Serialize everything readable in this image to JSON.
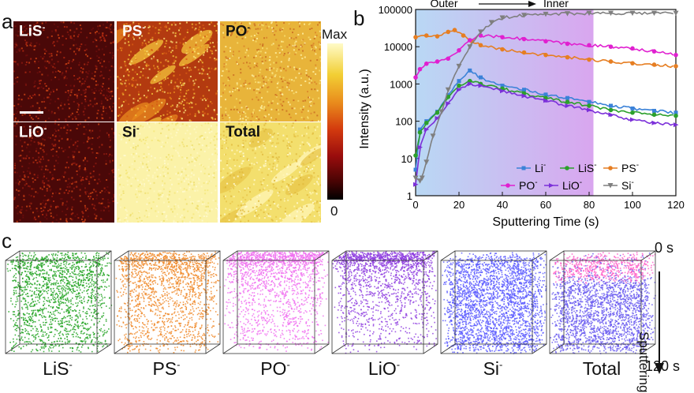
{
  "panel_a": {
    "letter": "a",
    "maps": [
      {
        "label": "LiS",
        "charge": "-",
        "palette": "sparse-red",
        "dark_label": false
      },
      {
        "label": "PS",
        "charge": "-",
        "palette": "stripes-orange",
        "dark_label": false
      },
      {
        "label": "PO",
        "charge": "-",
        "palette": "mottled-yellow",
        "dark_label": true
      },
      {
        "label": "LiO",
        "charge": "-",
        "palette": "sparse-red",
        "dark_label": false
      },
      {
        "label": "Si",
        "charge": "-",
        "palette": "pale-yellow",
        "dark_label": true
      },
      {
        "label": "Total",
        "charge": "",
        "palette": "yellow-streaks",
        "dark_label": true
      }
    ],
    "colorbar": {
      "max_label": "Max",
      "min_label": "0"
    }
  },
  "panel_b": {
    "letter": "b",
    "top_annotation": {
      "left": "Outer",
      "right": "Inner"
    },
    "colors": {
      "Li": "#3b82d8",
      "LiS": "#2ca02c",
      "PS": "#e67e22",
      "PO": "#e020d0",
      "LiO": "#7b2fd9",
      "Si": "#7f7f7f"
    }
  },
  "chart_data": {
    "type": "line",
    "xlabel": "Sputtering Time (s)",
    "ylabel": "Intensity (a.u.)",
    "x_scale": "linear",
    "y_scale": "log",
    "xlim": [
      0,
      120
    ],
    "ylim": [
      1,
      100000
    ],
    "x_ticks": [
      0,
      20,
      40,
      60,
      80,
      100,
      120
    ],
    "y_ticks": [
      1,
      10,
      100,
      1000,
      10000,
      100000
    ],
    "y_tick_labels": [
      "1",
      "10",
      "100",
      "1000",
      "10000",
      "100000"
    ],
    "shaded_region": {
      "x_range": [
        0,
        82
      ],
      "from_color": "#b9d8f4",
      "to_color": "#d9a6ef"
    },
    "legend_placement": "bottom-right",
    "grid": false,
    "series": [
      {
        "name": "Li",
        "charge": "-",
        "marker": "square",
        "color": "#3b82d8",
        "x": [
          0,
          2,
          5,
          10,
          15,
          20,
          25,
          30,
          40,
          50,
          60,
          70,
          80,
          90,
          100,
          110,
          120
        ],
        "y": [
          5,
          60,
          100,
          180,
          500,
          1200,
          2300,
          1500,
          900,
          700,
          520,
          420,
          330,
          260,
          220,
          190,
          170
        ]
      },
      {
        "name": "LiS",
        "charge": "-",
        "marker": "circle",
        "color": "#2ca02c",
        "x": [
          0,
          2,
          5,
          10,
          15,
          20,
          25,
          30,
          40,
          50,
          60,
          70,
          80,
          90,
          100,
          110,
          120
        ],
        "y": [
          12,
          50,
          90,
          170,
          450,
          900,
          1200,
          1000,
          750,
          560,
          420,
          330,
          260,
          200,
          170,
          150,
          140
        ]
      },
      {
        "name": "PS",
        "charge": "-",
        "marker": "circle",
        "color": "#e67e22",
        "x": [
          0,
          5,
          10,
          15,
          18,
          22,
          26,
          30,
          40,
          50,
          60,
          70,
          80,
          90,
          100,
          110,
          120
        ],
        "y": [
          18000,
          20000,
          19000,
          25000,
          28000,
          20000,
          14000,
          11000,
          8500,
          7000,
          6000,
          5200,
          4500,
          4000,
          3600,
          3300,
          3000
        ]
      },
      {
        "name": "PO",
        "charge": "-",
        "marker": "circle",
        "color": "#e020d0",
        "x": [
          0,
          2,
          5,
          10,
          15,
          20,
          25,
          30,
          40,
          50,
          60,
          70,
          80,
          90,
          100,
          110,
          120
        ],
        "y": [
          1500,
          2500,
          3500,
          4000,
          4800,
          8000,
          15000,
          20000,
          18000,
          16000,
          14000,
          12000,
          11000,
          10000,
          9000,
          7500,
          6000
        ]
      },
      {
        "name": "LiO",
        "charge": "-",
        "marker": "triangle-right",
        "color": "#7b2fd9",
        "x": [
          0,
          2,
          5,
          10,
          15,
          20,
          25,
          30,
          40,
          50,
          60,
          70,
          80,
          90,
          100,
          110,
          120
        ],
        "y": [
          2,
          20,
          60,
          120,
          300,
          700,
          1000,
          900,
          650,
          480,
          360,
          260,
          200,
          150,
          110,
          90,
          80
        ]
      },
      {
        "name": "Si",
        "charge": "-",
        "marker": "triangle-down",
        "color": "#7f7f7f",
        "x": [
          0,
          2,
          3,
          5,
          8,
          12,
          15,
          20,
          25,
          30,
          35,
          40,
          50,
          60,
          70,
          80,
          90,
          100,
          110,
          120
        ],
        "y": [
          3,
          2.5,
          3,
          8,
          40,
          180,
          700,
          3000,
          10000,
          25000,
          45000,
          60000,
          70000,
          75000,
          78000,
          80000,
          80000,
          80000,
          80000,
          80000
        ]
      }
    ]
  },
  "panel_c": {
    "letter": "c",
    "cubes": [
      {
        "label": "LiS",
        "charge": "-",
        "color": "#22a322",
        "density": "high-top"
      },
      {
        "label": "PS",
        "charge": "-",
        "color": "#f08a2a",
        "density": "medium-top"
      },
      {
        "label": "PO",
        "charge": "-",
        "color": "#f070f0",
        "density": "top-band"
      },
      {
        "label": "LiO",
        "charge": "-",
        "color": "#8f3fe0",
        "density": "top-band"
      },
      {
        "label": "Si",
        "charge": "-",
        "color": "#5b5bff",
        "density": "full"
      },
      {
        "label": "Total",
        "charge": "",
        "color": "#6a5cf0",
        "top_color": "#ff5fc8",
        "density": "full"
      }
    ],
    "axis": {
      "top_label": "0 s",
      "word": "Sputtering",
      "bottom_label": "120 s"
    }
  }
}
